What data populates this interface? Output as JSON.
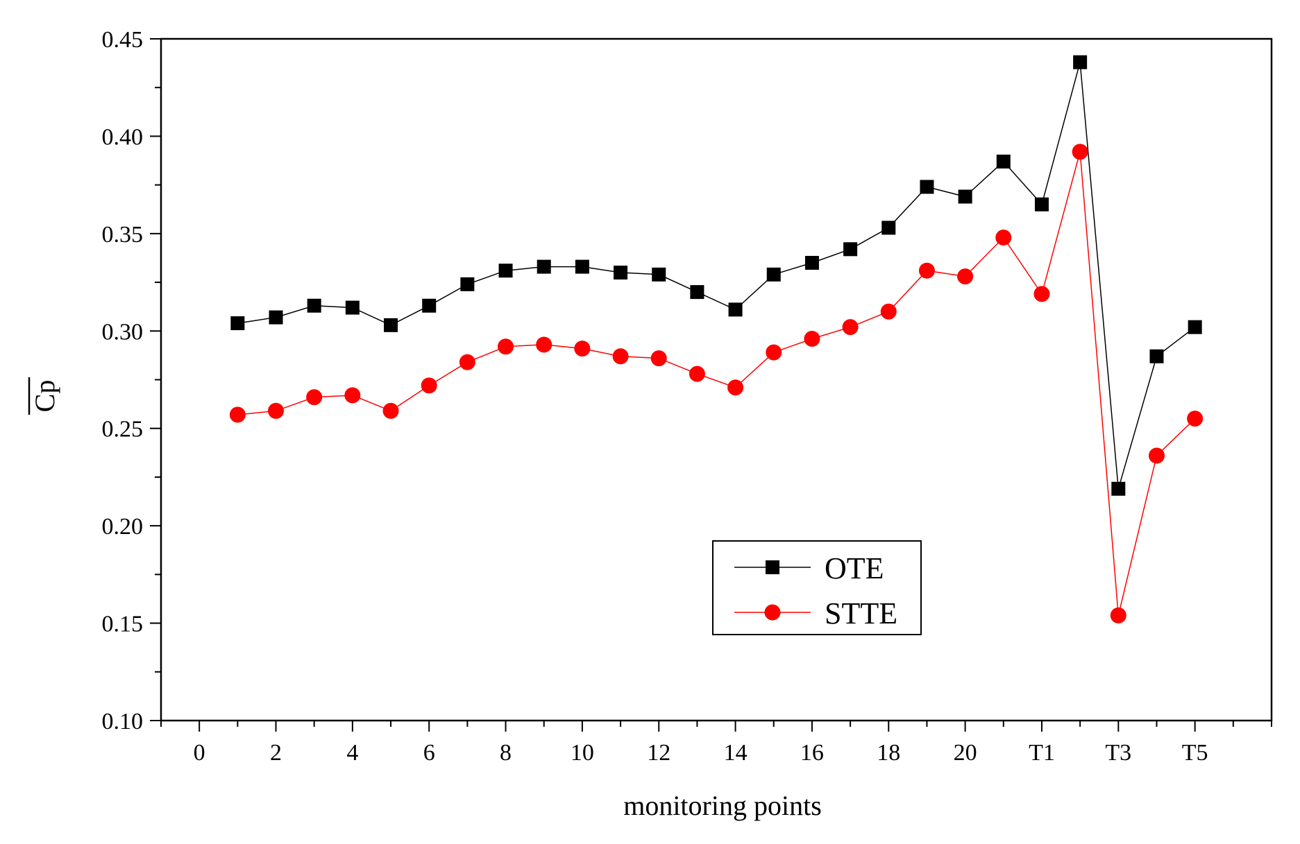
{
  "chart_data": {
    "type": "line",
    "title": "",
    "xlabel": "monitoring points",
    "ylabel": "Cp",
    "ylim": [
      0.1,
      0.45
    ],
    "xlim": [
      -1,
      28
    ],
    "y_ticks": [
      0.1,
      0.15,
      0.2,
      0.25,
      0.3,
      0.35,
      0.4,
      0.45
    ],
    "y_tick_labels": [
      "0.10",
      "0.15",
      "0.20",
      "0.25",
      "0.30",
      "0.35",
      "0.40",
      "0.45"
    ],
    "x_ticks": [
      0,
      2,
      4,
      6,
      8,
      10,
      12,
      14,
      16,
      18,
      20,
      22,
      24,
      26
    ],
    "x_tick_labels": [
      "0",
      "2",
      "4",
      "6",
      "8",
      "10",
      "12",
      "14",
      "16",
      "18",
      "20",
      "T1",
      "T3",
      "T5"
    ],
    "x": [
      1,
      2,
      3,
      4,
      5,
      6,
      7,
      8,
      9,
      10,
      11,
      12,
      13,
      14,
      15,
      16,
      17,
      18,
      19,
      20,
      21,
      22,
      23,
      24,
      25,
      26
    ],
    "series": [
      {
        "name": "OTE",
        "color": "#000000",
        "marker": "square",
        "values": [
          0.304,
          0.307,
          0.313,
          0.312,
          0.303,
          0.313,
          0.324,
          0.331,
          0.333,
          0.333,
          0.33,
          0.329,
          0.32,
          0.311,
          0.329,
          0.335,
          0.342,
          0.353,
          0.374,
          0.369,
          0.387,
          0.365,
          0.438,
          0.219,
          0.287,
          0.302
        ]
      },
      {
        "name": "STTE",
        "color": "#ff0000",
        "marker": "circle",
        "values": [
          0.257,
          0.259,
          0.266,
          0.267,
          0.259,
          0.272,
          0.284,
          0.292,
          0.293,
          0.291,
          0.287,
          0.286,
          0.278,
          0.271,
          0.289,
          0.296,
          0.302,
          0.31,
          0.331,
          0.328,
          0.348,
          0.319,
          0.392,
          0.154,
          0.236,
          0.255
        ]
      }
    ],
    "legend_position": "center"
  }
}
